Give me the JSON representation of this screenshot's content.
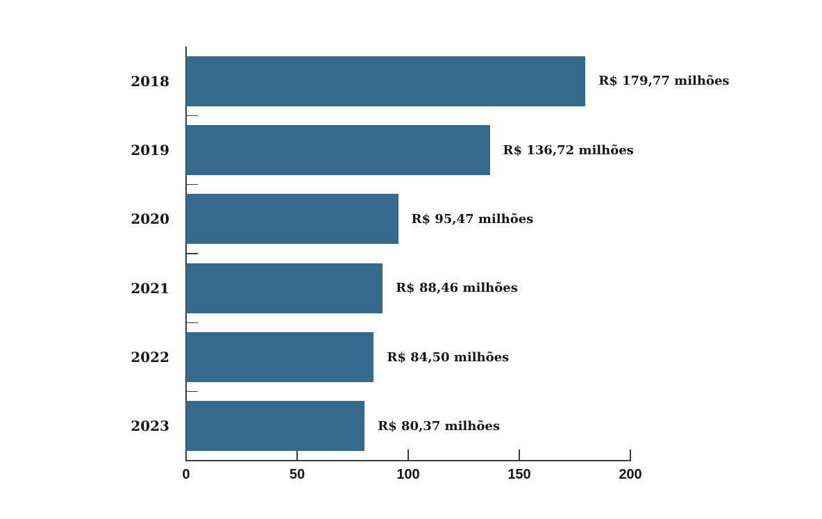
{
  "chart_data": {
    "type": "bar",
    "orientation": "horizontal",
    "title": "",
    "xlabel": "",
    "ylabel": "",
    "categories": [
      "2018",
      "2019",
      "2020",
      "2021",
      "2022",
      "2023"
    ],
    "values": [
      179.77,
      136.72,
      95.47,
      88.46,
      84.5,
      80.37
    ],
    "value_labels": [
      "R$ 179,77 milhões",
      "R$ 136,72 milhões",
      "R$ 95,47 milhões",
      "R$ 88,46 milhões",
      "R$ 84,50 milhões",
      "R$ 80,37 milhões"
    ],
    "unit": "R$ milhões",
    "x_ticks": [
      0,
      50,
      100,
      150,
      200
    ],
    "x_tick_labels": [
      "0",
      "50",
      "100",
      "150",
      "200"
    ],
    "xlim": [
      0,
      200
    ],
    "grid": false,
    "legend": false,
    "colors": {
      "bar": "#356A8D",
      "axis": "#3A3A3A",
      "text": "#151515",
      "background": "#FFFFFF"
    }
  }
}
